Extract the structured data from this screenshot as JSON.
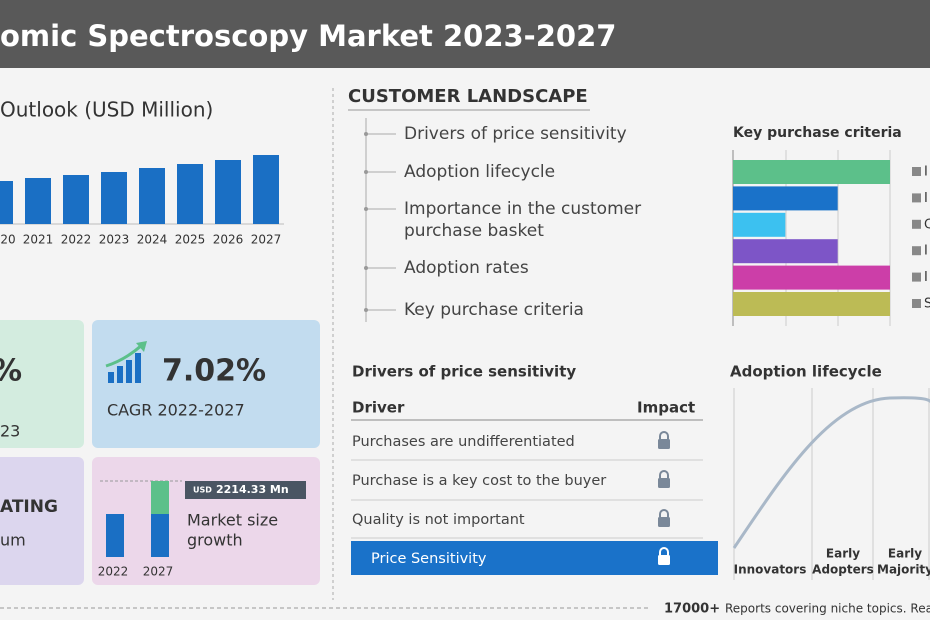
{
  "header": {
    "title": "omic Spectroscopy Market 2023-2027"
  },
  "chart_data": [
    {
      "type": "bar",
      "title": "Outlook (USD Million)",
      "categories": [
        "20",
        "2021",
        "2022",
        "2023",
        "2024",
        "2025",
        "2026",
        "2027"
      ],
      "values": [
        43,
        46,
        49,
        52,
        56,
        60,
        64,
        69
      ],
      "color": "#1a6fc4"
    },
    {
      "type": "stacked_bar",
      "title": [
        "Market size",
        "growth"
      ],
      "categories": [
        "2022",
        "2027"
      ],
      "currency": "USD",
      "series": [
        {
          "color": "#1a6fc4",
          "values": [
            2885,
            2885
          ]
        },
        {
          "color": "#5cc08a",
          "values": [
            null,
            2214.33
          ],
          "value_labels": [
            null,
            "2214.33 Mn"
          ]
        }
      ]
    },
    {
      "type": "hbar",
      "title": "Key purchase criteria",
      "categories": [
        "I",
        "I",
        "C",
        "I",
        "I",
        "S"
      ],
      "values": [
        3,
        2,
        1,
        2,
        3,
        3
      ],
      "colors": [
        "#5cc08a",
        "#1a72c9",
        "#3cc1f0",
        "#7d55c7",
        "#cc3ea8",
        "#bcbb55"
      ]
    },
    {
      "type": "lifecycle",
      "title": "Adoption lifecycle",
      "categories": [
        [
          "Innovators"
        ],
        [
          "Early",
          "Adopters"
        ],
        [
          "Early",
          "Majority"
        ]
      ]
    }
  ],
  "stats": [
    {
      "value": "%",
      "label": "23"
    },
    {
      "value": "7.02%",
      "label": "CAGR  2022-2027"
    },
    {
      "value": "ATING",
      "label": "um"
    }
  ],
  "customer_landscape": {
    "title": "CUSTOMER LANDSCAPE",
    "items": [
      [
        "Drivers of price sensitivity"
      ],
      [
        "Adoption lifecycle"
      ],
      [
        "Importance in the customer",
        "purchase basket"
      ],
      [
        "Adoption rates"
      ],
      [
        "Key purchase criteria"
      ]
    ]
  },
  "drivers": {
    "title": "Drivers of price sensitivity",
    "columns": [
      "Driver",
      "Impact"
    ],
    "rows": [
      "Purchases are undifferentiated",
      "Purchase is a key cost to the buyer",
      "Quality is not important"
    ],
    "highlight": "Price Sensitivity"
  },
  "footer": {
    "count": "17000+",
    "text": "Reports covering niche topics. Read"
  }
}
